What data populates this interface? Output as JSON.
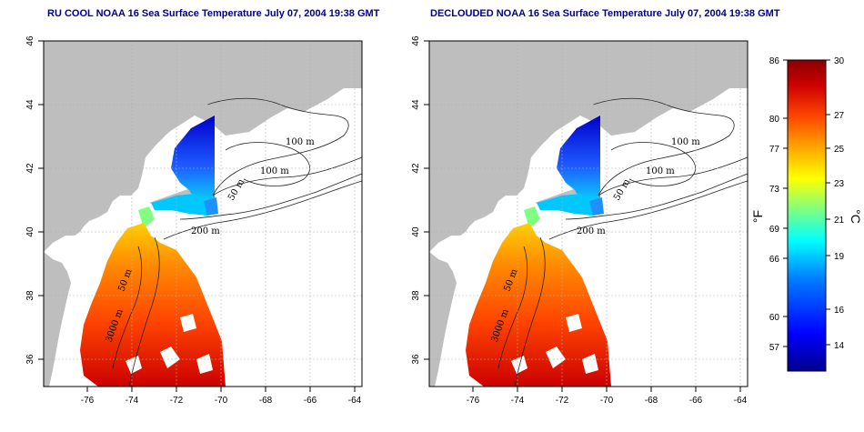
{
  "maps": [
    {
      "title": "RU COOL NOAA 16 Sea Surface Temperature July 07, 2004 19:38 GMT",
      "contours": [
        "100 m",
        "100 m",
        "50 m",
        "200 m",
        "50 m",
        "3000 m"
      ]
    },
    {
      "title": "DECLOUDED NOAA 16 Sea Surface Temperature July 07, 2004 19:38 GMT",
      "contours": [
        "100 m",
        "100 m",
        "50 m",
        "200 m",
        "50 m",
        "3000 m"
      ]
    }
  ],
  "axes": {
    "lon_ticks": [
      "-76",
      "-74",
      "-72",
      "-70",
      "-68",
      "-66",
      "-64"
    ],
    "lat_ticks": [
      "46",
      "44",
      "42",
      "40",
      "38",
      "36"
    ]
  },
  "colorbar": {
    "fahrenheit_ticks": [
      "86",
      "80",
      "77",
      "73",
      "69",
      "66",
      "60",
      "57"
    ],
    "celsius_ticks": [
      "30",
      "27",
      "25",
      "23",
      "21",
      "19",
      "16",
      "14"
    ],
    "fahrenheit_unit": "°F",
    "celsius_unit": "°C",
    "gradient": [
      "#00008b",
      "#0000ff",
      "#0080ff",
      "#00ffff",
      "#80ff80",
      "#ffff00",
      "#ffa500",
      "#ff4500",
      "#cc0000",
      "#8b0000"
    ]
  },
  "colors": {
    "land": "#bebebe",
    "water": "#ffffff",
    "title": "#00008b"
  }
}
